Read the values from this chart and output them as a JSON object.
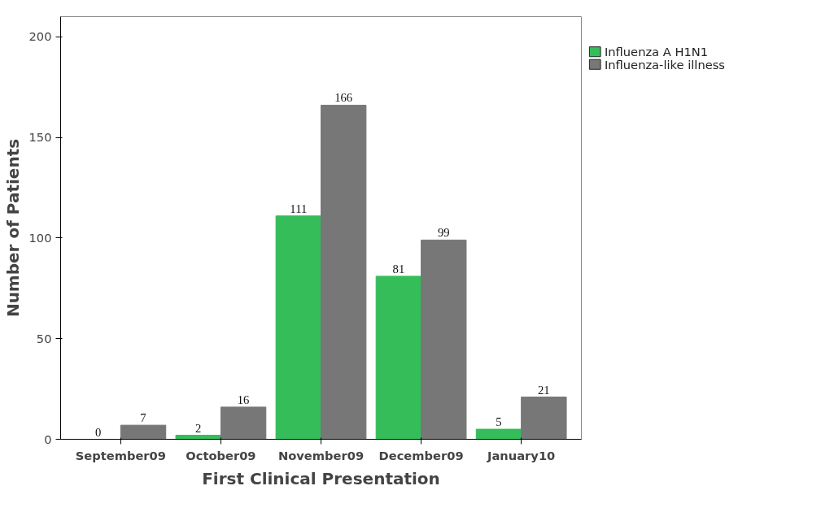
{
  "chart_data": {
    "type": "bar",
    "xlabel": "First Clinical Presentation",
    "ylabel": "Number of Patients",
    "categories": [
      "September09",
      "October09",
      "November09",
      "December09",
      "January10"
    ],
    "series": [
      {
        "name": "Influenza A H1N1",
        "color": "#35bd5a",
        "values": [
          0,
          2,
          111,
          81,
          5
        ]
      },
      {
        "name": "Influenza-like illness",
        "color": "#777777",
        "values": [
          7,
          16,
          166,
          99,
          21
        ]
      }
    ],
    "ylim": [
      0,
      210
    ],
    "yticks": [
      0,
      50,
      100,
      150,
      200
    ],
    "grid": false,
    "legend": "top right",
    "data_labels": true
  }
}
